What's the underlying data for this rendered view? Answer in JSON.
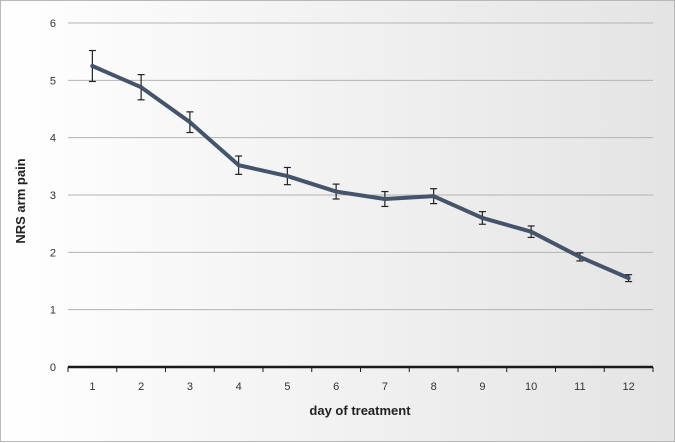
{
  "chart_data": {
    "type": "line",
    "xlabel": "day of treatment",
    "ylabel": "NRS arm pain",
    "categories": [
      "1",
      "2",
      "3",
      "4",
      "5",
      "6",
      "7",
      "8",
      "9",
      "10",
      "11",
      "12"
    ],
    "series": [
      {
        "values": [
          5.25,
          4.88,
          4.27,
          3.52,
          3.33,
          3.06,
          2.93,
          2.98,
          2.6,
          2.36,
          1.92,
          1.55
        ],
        "errors": [
          0.27,
          0.22,
          0.18,
          0.16,
          0.15,
          0.13,
          0.13,
          0.13,
          0.11,
          0.1,
          0.07,
          0.06
        ],
        "color": "#44546a"
      }
    ],
    "ylim": [
      0,
      6
    ],
    "yticks": [
      0,
      1,
      2,
      3,
      4,
      5,
      6
    ],
    "grid": true,
    "legend": "none"
  }
}
